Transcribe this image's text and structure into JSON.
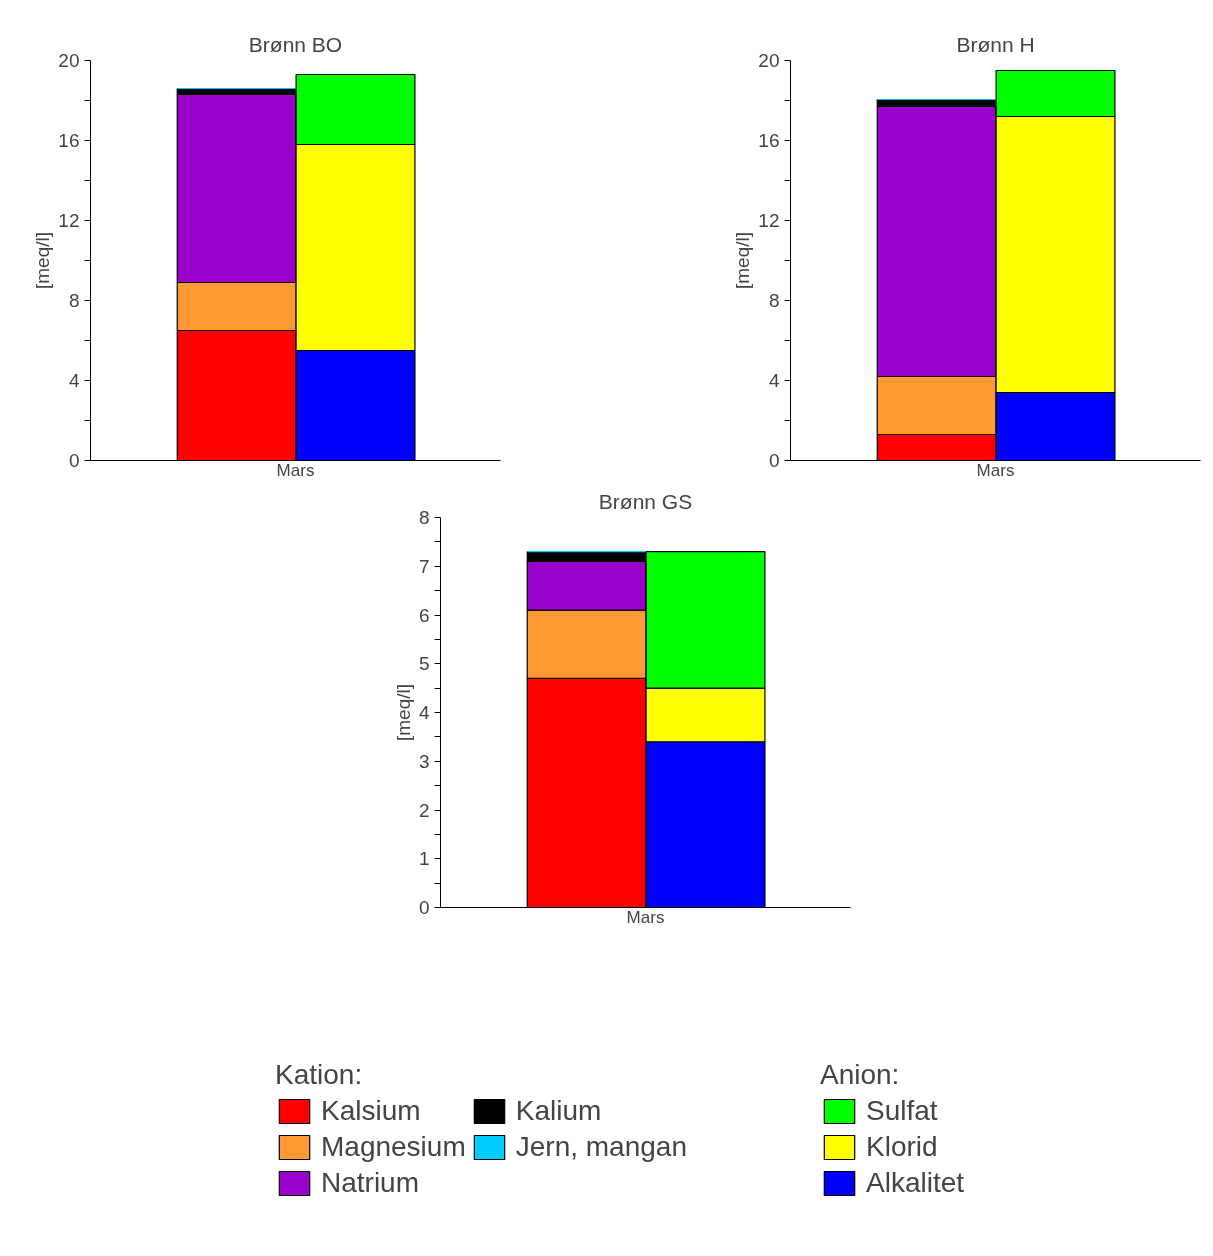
{
  "chart_data": [
    {
      "type": "bar",
      "title": "Brønn BO",
      "ylabel": "[meq/l]",
      "xlabel": "Mars",
      "stacked": true,
      "categories": [
        null,
        null
      ],
      "ylim": [
        0,
        20
      ],
      "yticks": [
        0,
        {
          "value": 2,
          "label": null
        },
        4,
        {
          "value": 6,
          "label": null
        },
        8,
        {
          "value": 10,
          "label": null
        },
        12,
        {
          "value": 14,
          "label": null
        },
        16,
        {
          "value": 18,
          "label": null
        },
        20
      ],
      "grid": false,
      "series": [
        {
          "color": "#ff0000",
          "values": [
            6.5,
            null
          ]
        },
        {
          "color": "#ff9933",
          "values": [
            2.4,
            null
          ]
        },
        {
          "color": "#9900cc",
          "values": [
            9.4,
            null
          ]
        },
        {
          "color": "#000000",
          "values": [
            0.3,
            null
          ]
        },
        {
          "color": "#00ccff",
          "values": [
            0,
            null
          ]
        },
        {
          "color": "#0000ff",
          "values": [
            null,
            5.5
          ]
        },
        {
          "color": "#ffff00",
          "values": [
            null,
            10.3
          ]
        },
        {
          "color": "#00ff00",
          "values": [
            null,
            3.5
          ]
        }
      ]
    },
    {
      "type": "bar",
      "title": "Brønn H",
      "ylabel": "[meq/l]",
      "xlabel": "Mars",
      "stacked": true,
      "categories": [
        null,
        null
      ],
      "ylim": [
        0,
        20
      ],
      "yticks": [
        0,
        {
          "value": 2,
          "label": null
        },
        4,
        {
          "value": 6,
          "label": null
        },
        8,
        {
          "value": 10,
          "label": null
        },
        12,
        {
          "value": 14,
          "label": null
        },
        16,
        {
          "value": 18,
          "label": null
        },
        20
      ],
      "grid": false,
      "series": [
        {
          "color": "#ff0000",
          "values": [
            1.3,
            null
          ]
        },
        {
          "color": "#ff9933",
          "values": [
            2.9,
            null
          ]
        },
        {
          "color": "#9900cc",
          "values": [
            13.5,
            null
          ]
        },
        {
          "color": "#000000",
          "values": [
            0.35,
            null
          ]
        },
        {
          "color": "#00ccff",
          "values": [
            0,
            null
          ]
        },
        {
          "color": "#0000ff",
          "values": [
            null,
            3.4
          ]
        },
        {
          "color": "#ffff00",
          "values": [
            null,
            13.8
          ]
        },
        {
          "color": "#00ff00",
          "values": [
            null,
            2.3
          ]
        }
      ]
    },
    {
      "type": "bar",
      "title": "Brønn GS",
      "ylabel": "[meq/l]",
      "xlabel": "Mars",
      "stacked": true,
      "categories": [
        null,
        null
      ],
      "ylim": [
        0,
        8
      ],
      "yticks": [
        0,
        {
          "value": 0.5,
          "label": null
        },
        1,
        {
          "value": 1.5,
          "label": null
        },
        2,
        {
          "value": 2.5,
          "label": null
        },
        3,
        {
          "value": 3.5,
          "label": null
        },
        4,
        {
          "value": 4.5,
          "label": null
        },
        5,
        {
          "value": 5.5,
          "label": null
        },
        6,
        {
          "value": 6.5,
          "label": null
        },
        7,
        {
          "value": 7.5,
          "label": null
        },
        8
      ],
      "grid": false,
      "legend": "bottom",
      "legend_title": "Kation:",
      "annotations": [
        "Anion:"
      ],
      "series": [
        {
          "name": "Kalsium",
          "color": "#ff0000",
          "values": [
            4.7,
            null
          ]
        },
        {
          "name": "Magnesium",
          "color": "#ff9933",
          "values": [
            1.4,
            null
          ]
        },
        {
          "name": "Natrium",
          "color": "#9900cc",
          "values": [
            1.0,
            null
          ]
        },
        {
          "name": "Kalium",
          "color": "#000000",
          "values": [
            0.2,
            null
          ]
        },
        {
          "name": "Jern, mangan",
          "color": "#00ccff",
          "values": [
            0,
            null
          ]
        },
        {
          "name": "Alkalitet",
          "color": "#0000ff",
          "values": [
            null,
            3.4
          ]
        },
        {
          "name": "Klorid",
          "color": "#ffff00",
          "values": [
            null,
            1.1
          ]
        },
        {
          "name": "Sulfat",
          "color": "#00ff00",
          "values": [
            null,
            2.8
          ]
        }
      ]
    }
  ]
}
